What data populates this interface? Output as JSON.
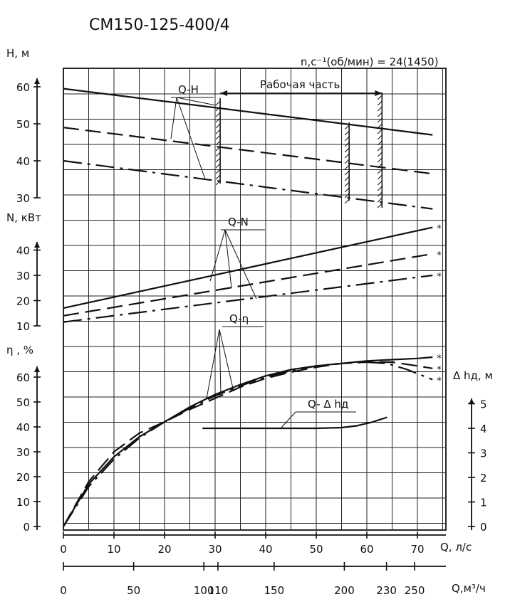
{
  "chart_data": {
    "type": "line",
    "title": "СМ150-125-400/4",
    "speed_label": "n,c⁻¹(об/мин) = 24(1450)",
    "working_range_label": "Рабочая часть",
    "x_label": "Q, л/с",
    "x2_label": "Q,м³/ч",
    "x_ticks": [
      "0",
      "10",
      "20",
      "30",
      "40",
      "50",
      "60",
      "70"
    ],
    "x2_ticks": [
      {
        "q": 0,
        "label": "0"
      },
      {
        "q": 50,
        "label": "50"
      },
      {
        "q": 100,
        "label": "100"
      },
      {
        "q": 110,
        "label": "110"
      },
      {
        "q": 150,
        "label": "150"
      },
      {
        "q": 200,
        "label": "200"
      },
      {
        "q": 230,
        "label": "230"
      },
      {
        "q": 250,
        "label": "250"
      }
    ],
    "panels": {
      "H": {
        "axis_label": "H, м",
        "range": [
          30,
          60
        ],
        "ticks": [
          "30",
          "40",
          "50",
          "60"
        ],
        "curve_label": "Q-H",
        "series": [
          {
            "style": "solid",
            "points": [
              [
                0,
                59.5
              ],
              [
                73,
                47
              ]
            ]
          },
          {
            "style": "dashed",
            "points": [
              [
                0,
                49
              ],
              [
                73,
                36.5
              ]
            ]
          },
          {
            "style": "dashdot",
            "points": [
              [
                0,
                40
              ],
              [
                73,
                27
              ]
            ]
          }
        ]
      },
      "N": {
        "axis_label": "N, кВт",
        "range": [
          10,
          40
        ],
        "ticks": [
          "10",
          "20",
          "30",
          "40"
        ],
        "curve_label": "Q-N",
        "series": [
          {
            "style": "solid",
            "points": [
              [
                0,
                17
              ],
              [
                73,
                49
              ]
            ],
            "marker": "*"
          },
          {
            "style": "dashed",
            "points": [
              [
                0,
                14
              ],
              [
                73,
                38.5
              ]
            ],
            "marker": "*"
          },
          {
            "style": "dashdot",
            "points": [
              [
                0,
                11.5
              ],
              [
                73,
                30
              ]
            ],
            "marker": "*"
          }
        ]
      },
      "eta": {
        "axis_label": "η , %",
        "range": [
          0,
          60
        ],
        "ticks": [
          "0",
          "10",
          "20",
          "30",
          "40",
          "50",
          "60"
        ],
        "curve_label": "Q-η",
        "series": [
          {
            "style": "solid",
            "marker": "*",
            "points": [
              [
                0,
                0
              ],
              [
                5,
                17
              ],
              [
                10,
                28
              ],
              [
                15,
                36
              ],
              [
                20,
                42
              ],
              [
                25,
                48
              ],
              [
                30,
                53
              ],
              [
                35,
                57
              ],
              [
                40,
                60.5
              ],
              [
                45,
                63
              ],
              [
                50,
                64.5
              ],
              [
                55,
                65.5
              ],
              [
                60,
                66.5
              ],
              [
                65,
                67
              ],
              [
                70,
                67.5
              ],
              [
                73,
                68
              ]
            ]
          },
          {
            "style": "dashed",
            "marker": "*",
            "points": [
              [
                0,
                0
              ],
              [
                5,
                18
              ],
              [
                10,
                30
              ],
              [
                15,
                37.5
              ],
              [
                20,
                42
              ],
              [
                25,
                47
              ],
              [
                30,
                51.5
              ],
              [
                35,
                56
              ],
              [
                40,
                59.5
              ],
              [
                45,
                62
              ],
              [
                50,
                64
              ],
              [
                55,
                65.5
              ],
              [
                60,
                66
              ],
              [
                65,
                66
              ],
              [
                70,
                64.5
              ],
              [
                73,
                63.5
              ]
            ]
          },
          {
            "style": "dashdot",
            "marker": "*",
            "points": [
              [
                0,
                0
              ],
              [
                5,
                16
              ],
              [
                10,
                27
              ],
              [
                15,
                35.5
              ],
              [
                20,
                42
              ],
              [
                25,
                47.5
              ],
              [
                30,
                52.5
              ],
              [
                35,
                56.5
              ],
              [
                40,
                60
              ],
              [
                45,
                62.5
              ],
              [
                50,
                64.5
              ],
              [
                55,
                65.5
              ],
              [
                60,
                66
              ],
              [
                64,
                65.5
              ],
              [
                68,
                63
              ],
              [
                73,
                59
              ]
            ]
          }
        ]
      },
      "dh": {
        "axis_label": "Δ hд, м",
        "range": [
          0,
          5
        ],
        "ticks": [
          "0",
          "1",
          "2",
          "3",
          "4",
          "5"
        ],
        "curve_label": "Q- Δ hд",
        "series": [
          {
            "style": "solid",
            "points": [
              [
                27.5,
                4
              ],
              [
                35,
                4
              ],
              [
                45,
                4
              ],
              [
                50,
                4
              ],
              [
                55,
                4.03
              ],
              [
                58,
                4.1
              ],
              [
                61,
                4.25
              ],
              [
                64,
                4.45
              ]
            ]
          }
        ]
      }
    },
    "working_range_q": [
      31,
      63
    ]
  }
}
